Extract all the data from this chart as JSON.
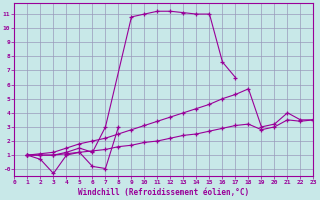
{
  "bg_color": "#c8e8e8",
  "line_color": "#990099",
  "grid_color": "#9999bb",
  "xlabel": "Windchill (Refroidissement éolien,°C)",
  "xlim": [
    0,
    23
  ],
  "ylim": [
    -0.5,
    11.8
  ],
  "xticks": [
    0,
    1,
    2,
    3,
    4,
    5,
    6,
    7,
    8,
    9,
    10,
    11,
    12,
    13,
    14,
    15,
    16,
    17,
    18,
    19,
    20,
    21,
    22,
    23
  ],
  "yticks": [
    0,
    1,
    2,
    3,
    4,
    5,
    6,
    7,
    8,
    9,
    10,
    11
  ],
  "ytick_labels": [
    "-0",
    "1",
    "2",
    "3",
    "4",
    "5",
    "6",
    "7",
    "8",
    "9",
    "10",
    "11"
  ],
  "line1_x": [
    1,
    2,
    3,
    4,
    5,
    6,
    7,
    9,
    10,
    11,
    12,
    13,
    14,
    15,
    16,
    17
  ],
  "line1_y": [
    1,
    1,
    1,
    1.2,
    1.5,
    1.2,
    3.0,
    10.8,
    11.0,
    11.2,
    11.2,
    11.1,
    11.0,
    11.0,
    7.6,
    6.5
  ],
  "line2_x": [
    1,
    2,
    3,
    4,
    5,
    6,
    7,
    8
  ],
  "line2_y": [
    1,
    0.7,
    -0.3,
    1.0,
    1.2,
    0.2,
    0.05,
    3.0
  ],
  "line3_x": [
    1,
    2,
    3,
    4,
    5,
    6,
    7,
    8,
    9,
    10,
    11,
    12,
    13,
    14,
    15,
    16,
    17,
    18,
    19,
    20,
    21,
    22,
    23
  ],
  "line3_y": [
    1,
    1.1,
    1.2,
    1.5,
    1.8,
    2.0,
    2.2,
    2.5,
    2.8,
    3.1,
    3.4,
    3.7,
    4.0,
    4.3,
    4.6,
    5.0,
    5.3,
    5.7,
    3.0,
    3.2,
    4.0,
    3.5,
    3.5
  ],
  "line4_x": [
    1,
    2,
    3,
    4,
    5,
    6,
    7,
    8,
    9,
    10,
    11,
    12,
    13,
    14,
    15,
    16,
    17,
    18,
    19,
    20,
    21,
    22,
    23
  ],
  "line4_y": [
    1,
    1.0,
    1.0,
    1.1,
    1.2,
    1.3,
    1.4,
    1.6,
    1.7,
    1.9,
    2.0,
    2.2,
    2.4,
    2.5,
    2.7,
    2.9,
    3.1,
    3.2,
    2.8,
    3.0,
    3.5,
    3.4,
    3.5
  ]
}
